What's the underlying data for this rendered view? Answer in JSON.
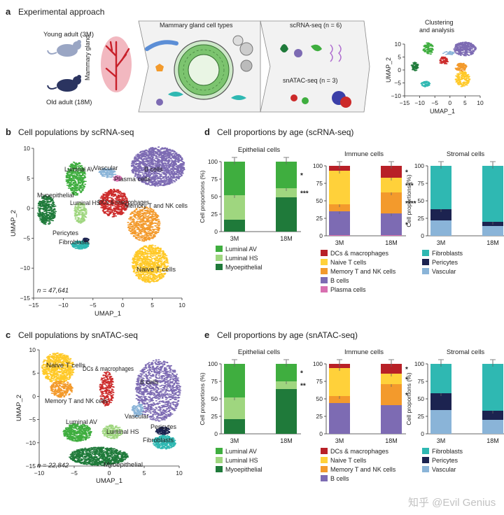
{
  "panels": {
    "a": {
      "letter": "a",
      "title": "Experimental approach",
      "young_label": "Young adult (3M)",
      "old_label": "Old adult (18M)",
      "gland_label": "Mammary gland",
      "cell_types_label": "Mammary gland cell types",
      "scrna_label": "scRNA-seq (n = 6)",
      "snatac_label": "snATAC-seq (n = 3)",
      "clustering_label_1": "Clustering",
      "clustering_label_2": "and analysis",
      "mini_umap": {
        "xlabel": "UMAP_1",
        "ylabel": "UMAP_2",
        "xticks": [
          "−15",
          "−10",
          "−5",
          "0",
          "5",
          "10"
        ],
        "yticks": [
          "10",
          "5",
          "0",
          "−5",
          "−10"
        ]
      }
    },
    "b": {
      "letter": "b",
      "title": "Cell populations by scRNA-seq",
      "n_label": "n = 47,641",
      "xlabel": "UMAP_1",
      "ylabel": "UMAP_2",
      "xticks": [
        "−15",
        "−10",
        "−5",
        "0",
        "5",
        "10"
      ],
      "yticks": [
        "10",
        "5",
        "0",
        "−5",
        "−10",
        "−15"
      ],
      "clusters": [
        {
          "label": "Luminal AV",
          "color": "#3fae3f"
        },
        {
          "label": "Vascular",
          "color": "#8ab4d8"
        },
        {
          "label": "B cells",
          "color": "#7d6bb3"
        },
        {
          "label": "Plasma cells",
          "color": "#d86fb0"
        },
        {
          "label": "Myoepithelial",
          "color": "#1f7a3a"
        },
        {
          "label": "Luminal HS",
          "color": "#9fd67f"
        },
        {
          "label": "DCs & macrophages",
          "color": "#cc2a2a"
        },
        {
          "label": "Memory T and NK cells",
          "color": "#f39a2c"
        },
        {
          "label": "Pericytes",
          "color": "#1c2350"
        },
        {
          "label": "Fibroblasts",
          "color": "#2fb8b2"
        },
        {
          "label": "Naive T cells",
          "color": "#ffc928"
        }
      ]
    },
    "c": {
      "letter": "c",
      "title": "Cell populations by snATAC-seq",
      "n_label": "n = 22,842",
      "xlabel": "UMAP_1",
      "ylabel": "UMAP_2",
      "xticks": [
        "−10",
        "−5",
        "0",
        "5",
        "10"
      ],
      "yticks": [
        "10",
        "5",
        "0",
        "−5",
        "−10",
        "−15"
      ],
      "clusters": [
        {
          "label": "Naive T cells"
        },
        {
          "label": "DCs & macrophages"
        },
        {
          "label": "B cells"
        },
        {
          "label": "Memory T and NK cells"
        },
        {
          "label": "Vascular"
        },
        {
          "label": "Pericytes"
        },
        {
          "label": "Luminal AV"
        },
        {
          "label": "Luminal HS"
        },
        {
          "label": "Fibroblasts"
        },
        {
          "label": "Myoepithelial"
        }
      ]
    },
    "d": {
      "letter": "d",
      "title": "Cell proportions by age (scRNA-seq)"
    },
    "e": {
      "letter": "e",
      "title": "Cell proportions by age (snATAC-seq)"
    }
  },
  "watermark": "知乎 @Evil Genius",
  "colors": {
    "luminal_av": "#3fae3f",
    "luminal_hs": "#9fd67f",
    "myoepithelial": "#1f7a3a",
    "dcs": "#b82027",
    "naive_t": "#ffd13a",
    "memory_t": "#f39a2c",
    "b_cells": "#7d6bb3",
    "plasma": "#d86fb0",
    "fibroblasts": "#2fb8b2",
    "pericytes": "#1c2350",
    "vascular": "#8ab4d8"
  },
  "chart_data": [
    {
      "type": "bar",
      "stacked": true,
      "panel": "d",
      "title": "Epithelial cells",
      "ylabel": "Cell proportions (%)",
      "ylim": [
        0,
        100
      ],
      "yticks": [
        0,
        25,
        50,
        75,
        100
      ],
      "categories": [
        "3M",
        "18M"
      ],
      "series": [
        {
          "name": "Myoepithelial",
          "color": "#1f7a3a",
          "values": [
            17,
            49
          ]
        },
        {
          "name": "Luminal HS",
          "color": "#9fd67f",
          "values": [
            35,
            13
          ]
        },
        {
          "name": "Luminal AV",
          "color": "#3fae3f",
          "values": [
            48,
            38
          ]
        }
      ],
      "annotations": [
        {
          "text": "*",
          "at": "18M"
        },
        {
          "text": "***",
          "at": "18M"
        }
      ]
    },
    {
      "type": "bar",
      "stacked": true,
      "panel": "d",
      "title": "Immune cells",
      "ylabel": "",
      "ylim": [
        0,
        100
      ],
      "yticks": [
        0,
        25,
        50,
        75,
        100
      ],
      "categories": [
        "3M",
        "18M"
      ],
      "series": [
        {
          "name": "Plasma cells",
          "color": "#d86fb0",
          "values": [
            1,
            1
          ]
        },
        {
          "name": "B cells",
          "color": "#7d6bb3",
          "values": [
            34,
            31
          ]
        },
        {
          "name": "Memory T and NK cells",
          "color": "#f39a2c",
          "values": [
            10,
            30
          ]
        },
        {
          "name": "Naive T cells",
          "color": "#ffd13a",
          "values": [
            48,
            21
          ]
        },
        {
          "name": "DCs & macrophages",
          "color": "#b82027",
          "values": [
            7,
            17
          ]
        }
      ],
      "annotations": [
        {
          "text": "*",
          "at": "18M"
        },
        {
          "text": "***",
          "at": "18M"
        },
        {
          "text": "****",
          "at": "18M"
        },
        {
          "text": "*",
          "at": "18M"
        }
      ]
    },
    {
      "type": "bar",
      "stacked": true,
      "panel": "d",
      "title": "Stromal cells",
      "ylabel": "Cell proportions (%)",
      "ylim": [
        0,
        100
      ],
      "yticks": [
        0,
        25,
        50,
        75,
        100
      ],
      "categories": [
        "3M",
        "18M"
      ],
      "series": [
        {
          "name": "Vascular",
          "color": "#8ab4d8",
          "values": [
            22,
            14
          ]
        },
        {
          "name": "Pericytes",
          "color": "#1c2350",
          "values": [
            16,
            6
          ]
        },
        {
          "name": "Fibroblasts",
          "color": "#2fb8b2",
          "values": [
            62,
            80
          ]
        }
      ],
      "annotations": [
        {
          "text": "*",
          "at": "18M"
        }
      ]
    },
    {
      "type": "bar",
      "stacked": true,
      "panel": "e",
      "title": "Epithelial cells",
      "ylabel": "Cell proportions (%)",
      "ylim": [
        0,
        100
      ],
      "yticks": [
        0,
        25,
        50,
        75,
        100
      ],
      "categories": [
        "3M",
        "18M"
      ],
      "series": [
        {
          "name": "Myoepithelial",
          "color": "#1f7a3a",
          "values": [
            21,
            64
          ]
        },
        {
          "name": "Luminal HS",
          "color": "#9fd67f",
          "values": [
            31,
            11
          ]
        },
        {
          "name": "Luminal AV",
          "color": "#3fae3f",
          "values": [
            48,
            25
          ]
        }
      ],
      "annotations": [
        {
          "text": "*",
          "at": "18M"
        },
        {
          "text": "**",
          "at": "18M"
        }
      ]
    },
    {
      "type": "bar",
      "stacked": true,
      "panel": "e",
      "title": "Immune cells",
      "ylabel": "",
      "ylim": [
        0,
        100
      ],
      "yticks": [
        0,
        25,
        50,
        75,
        100
      ],
      "categories": [
        "3M",
        "18M"
      ],
      "series": [
        {
          "name": "B cells",
          "color": "#7d6bb3",
          "values": [
            44,
            41
          ]
        },
        {
          "name": "Memory T and NK cells",
          "color": "#f39a2c",
          "values": [
            10,
            30
          ]
        },
        {
          "name": "Naive T cells",
          "color": "#ffd13a",
          "values": [
            40,
            15
          ]
        },
        {
          "name": "DCs & macrophages",
          "color": "#b82027",
          "values": [
            6,
            14
          ]
        }
      ],
      "annotations": [
        {
          "text": "*",
          "at": "18M"
        },
        {
          "text": "*",
          "at": "18M"
        },
        {
          "text": "*",
          "at": "18M"
        }
      ]
    },
    {
      "type": "bar",
      "stacked": true,
      "panel": "e",
      "title": "Stromal cells",
      "ylabel": "Cell proportions (%)",
      "ylim": [
        0,
        100
      ],
      "yticks": [
        0,
        25,
        50,
        75,
        100
      ],
      "categories": [
        "3M",
        "18M"
      ],
      "series": [
        {
          "name": "Vascular",
          "color": "#8ab4d8",
          "values": [
            34,
            20
          ]
        },
        {
          "name": "Pericytes",
          "color": "#1c2350",
          "values": [
            24,
            13
          ]
        },
        {
          "name": "Fibroblasts",
          "color": "#2fb8b2",
          "values": [
            42,
            67
          ]
        }
      ],
      "annotations": [
        {
          "text": "*",
          "at": "18M"
        },
        {
          "text": "*",
          "at": "18M"
        }
      ]
    }
  ],
  "legends": {
    "d_epi": [
      "Luminal AV",
      "Luminal HS",
      "Myoepithelial"
    ],
    "d_imm": [
      "DCs & macrophages",
      "Naive T cells",
      "Memory T and NK cells",
      "B cells",
      "Plasma cells"
    ],
    "d_str": [
      "Fibroblasts",
      "Pericytes",
      "Vascular"
    ],
    "e_epi": [
      "Luminal AV",
      "Luminal HS",
      "Myoepithelial"
    ],
    "e_imm": [
      "DCs & macrophages",
      "Naive T cells",
      "Memory T and NK cells",
      "B cells"
    ],
    "e_str": [
      "Fibroblasts",
      "Pericytes",
      "Vascular"
    ]
  }
}
